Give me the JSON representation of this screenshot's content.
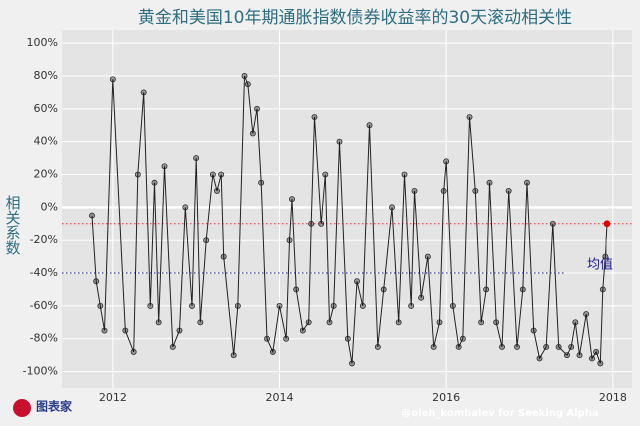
{
  "chart_data": {
    "type": "line",
    "title": "黄金和美国10年期通胀指数债券收益率的30天滚动相关性",
    "y_label": "相关系数",
    "annotation": "均值",
    "watermark": "@oleh_kombalev for Seeking Alpha",
    "logo": "图表家",
    "grid": true,
    "xlim": [
      2011.39,
      2018.23
    ],
    "xticks": [
      2012,
      2014,
      2016,
      2018
    ],
    "ylim": [
      -110,
      108
    ],
    "yticks": [
      {
        "value": -100,
        "label": "-100%"
      },
      {
        "value": -80,
        "label": "-80%"
      },
      {
        "value": -60,
        "label": "-60%"
      },
      {
        "value": -40,
        "label": "-40%"
      },
      {
        "value": -20,
        "label": "-20%"
      },
      {
        "value": 0,
        "label": "0%"
      },
      {
        "value": 20,
        "label": "20%"
      },
      {
        "value": 40,
        "label": "40%"
      },
      {
        "value": 60,
        "label": "60%"
      },
      {
        "value": 80,
        "label": "80%"
      },
      {
        "value": 100,
        "label": "100%"
      }
    ],
    "reference_lines": [
      {
        "value": -40,
        "color": "#1a1a9a"
      },
      {
        "value": -10,
        "color": "#e0303a"
      }
    ],
    "last_point_color": "#e00000",
    "series": [
      {
        "name": "相关性",
        "color": "#222222",
        "x": [
          2011.75,
          2011.8,
          2011.85,
          2011.9,
          2012.0,
          2012.15,
          2012.25,
          2012.3,
          2012.37,
          2012.45,
          2012.5,
          2012.55,
          2012.62,
          2012.72,
          2012.8,
          2012.87,
          2012.95,
          2013.0,
          2013.05,
          2013.12,
          2013.2,
          2013.25,
          2013.3,
          2013.33,
          2013.45,
          2013.5,
          2013.58,
          2013.62,
          2013.68,
          2013.73,
          2013.78,
          2013.85,
          2013.92,
          2014.0,
          2014.08,
          2014.12,
          2014.15,
          2014.2,
          2014.28,
          2014.35,
          2014.38,
          2014.42,
          2014.5,
          2014.55,
          2014.6,
          2014.65,
          2014.72,
          2014.82,
          2014.87,
          2014.93,
          2015.0,
          2015.08,
          2015.18,
          2015.25,
          2015.35,
          2015.43,
          2015.5,
          2015.58,
          2015.62,
          2015.7,
          2015.78,
          2015.85,
          2015.92,
          2015.97,
          2016.0,
          2016.08,
          2016.15,
          2016.2,
          2016.28,
          2016.35,
          2016.42,
          2016.48,
          2016.52,
          2016.6,
          2016.67,
          2016.75,
          2016.85,
          2016.92,
          2016.97,
          2017.05,
          2017.12,
          2017.2,
          2017.28,
          2017.35,
          2017.45,
          2017.5,
          2017.55,
          2017.6,
          2017.68,
          2017.75,
          2017.8,
          2017.85,
          2017.88,
          2017.91,
          2017.93
        ],
        "values": [
          -5,
          -45,
          -60,
          -75,
          78,
          -75,
          -88,
          20,
          70,
          -60,
          15,
          -70,
          25,
          -85,
          -75,
          0,
          -60,
          30,
          -70,
          -20,
          20,
          10,
          20,
          -30,
          -90,
          -60,
          80,
          75,
          45,
          60,
          15,
          -80,
          -88,
          -60,
          -80,
          -20,
          5,
          -50,
          -75,
          -70,
          -10,
          55,
          -10,
          20,
          -70,
          -60,
          40,
          -80,
          -95,
          -45,
          -60,
          50,
          -85,
          -50,
          0,
          -70,
          20,
          -60,
          10,
          -55,
          -30,
          -85,
          -70,
          10,
          28,
          -60,
          -85,
          -80,
          55,
          10,
          -70,
          -50,
          15,
          -70,
          -85,
          10,
          -85,
          -50,
          15,
          -75,
          -92,
          -85,
          -10,
          -85,
          -90,
          -85,
          -70,
          -90,
          -65,
          -92,
          -88,
          -95,
          -50,
          -30,
          -10
        ]
      }
    ]
  }
}
